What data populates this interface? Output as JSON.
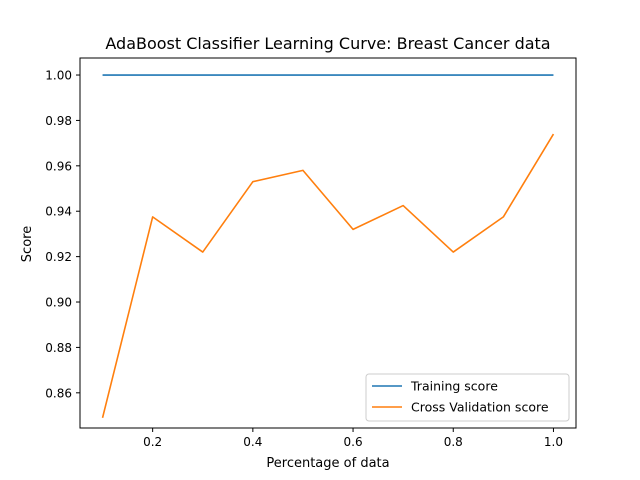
{
  "chart_data": {
    "type": "line",
    "title": "AdaBoost Classifier Learning Curve: Breast Cancer data",
    "xlabel": "Percentage of data",
    "ylabel": "Score",
    "xlim": [
      0.055,
      1.045
    ],
    "ylim": [
      0.8445,
      1.0075
    ],
    "xticks": [
      0.2,
      0.4,
      0.6,
      0.8,
      1.0
    ],
    "xtick_labels": [
      "0.2",
      "0.4",
      "0.6",
      "0.8",
      "1.0"
    ],
    "yticks": [
      0.86,
      0.88,
      0.9,
      0.92,
      0.94,
      0.96,
      0.98,
      1.0
    ],
    "ytick_labels": [
      "0.86",
      "0.88",
      "0.90",
      "0.92",
      "0.94",
      "0.96",
      "0.98",
      "1.00"
    ],
    "grid": false,
    "legend_position": "lower-right",
    "x": [
      0.1,
      0.2,
      0.3,
      0.4,
      0.5,
      0.6,
      0.7,
      0.8,
      0.9,
      1.0
    ],
    "series": [
      {
        "name": "Training score",
        "color": "#1f77b4",
        "values": [
          1.0,
          1.0,
          1.0,
          1.0,
          1.0,
          1.0,
          1.0,
          1.0,
          1.0,
          1.0
        ]
      },
      {
        "name": "Cross Validation score",
        "color": "#ff7f0e",
        "values": [
          0.849,
          0.9375,
          0.922,
          0.953,
          0.958,
          0.932,
          0.9425,
          0.922,
          0.9375,
          0.974
        ]
      }
    ]
  }
}
